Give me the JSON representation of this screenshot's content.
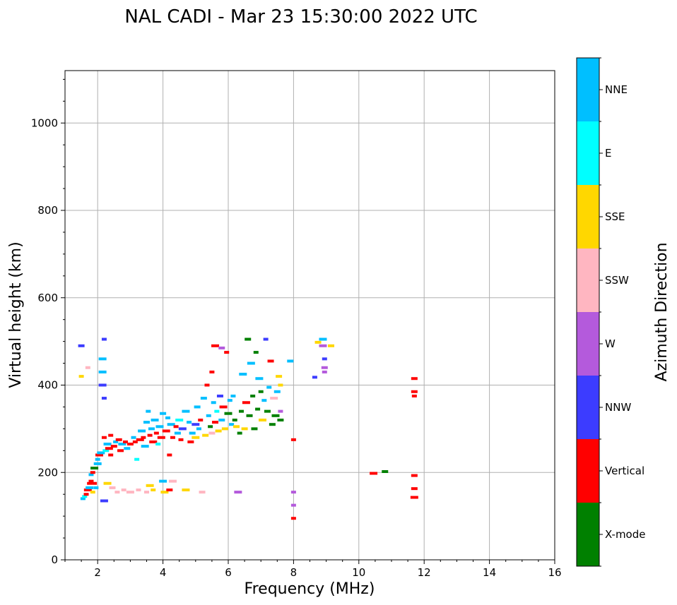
{
  "chart_data": {
    "type": "scatter",
    "title": "NAL CADI - Mar 23 15:30:00 2022 UTC",
    "xlabel": "Frequency (MHz)",
    "ylabel": "Virtual height (km)",
    "xlim": [
      1,
      16
    ],
    "ylim": [
      0,
      1120
    ],
    "xticks": [
      2,
      4,
      6,
      8,
      10,
      12,
      14,
      16
    ],
    "yticks": [
      0,
      200,
      400,
      600,
      800,
      1000
    ],
    "grid": true,
    "colorbar": {
      "title": "Azimuth Direction",
      "categories": [
        {
          "name": "X-mode",
          "color": "#008000"
        },
        {
          "name": "Vertical",
          "color": "#ff0000"
        },
        {
          "name": "NNW",
          "color": "#3c3cff"
        },
        {
          "name": "W",
          "color": "#b45adc"
        },
        {
          "name": "SSW",
          "color": "#ffb6c1"
        },
        {
          "name": "SSE",
          "color": "#ffd700"
        },
        {
          "name": "E",
          "color": "#00ffff"
        },
        {
          "name": "NNE",
          "color": "#00bfff"
        }
      ]
    },
    "points": [
      [
        1.5,
        490,
        "NNW"
      ],
      [
        1.5,
        420,
        "SSE"
      ],
      [
        1.55,
        140,
        "NNE"
      ],
      [
        1.6,
        145,
        "E"
      ],
      [
        1.65,
        150,
        "Vertical"
      ],
      [
        1.7,
        440,
        "SSW"
      ],
      [
        1.7,
        160,
        "Vertical"
      ],
      [
        1.75,
        175,
        "Vertical"
      ],
      [
        1.75,
        165,
        "NNE"
      ],
      [
        1.8,
        180,
        "Vertical"
      ],
      [
        1.8,
        195,
        "NNE"
      ],
      [
        1.85,
        155,
        "SSE"
      ],
      [
        1.85,
        200,
        "Vertical"
      ],
      [
        1.9,
        210,
        "X-mode"
      ],
      [
        1.9,
        175,
        "Vertical"
      ],
      [
        1.95,
        165,
        "NNE"
      ],
      [
        2.0,
        220,
        "NNE"
      ],
      [
        2.0,
        230,
        "NNE"
      ],
      [
        2.05,
        240,
        "Vertical"
      ],
      [
        2.1,
        245,
        "NNE"
      ],
      [
        2.15,
        460,
        "NNE"
      ],
      [
        2.15,
        430,
        "NNE"
      ],
      [
        2.15,
        400,
        "NNW"
      ],
      [
        2.2,
        505,
        "NNW"
      ],
      [
        2.2,
        370,
        "NNW"
      ],
      [
        2.2,
        280,
        "Vertical"
      ],
      [
        2.2,
        135,
        "NNW"
      ],
      [
        2.25,
        250,
        "E"
      ],
      [
        2.3,
        265,
        "NNE"
      ],
      [
        2.3,
        175,
        "SSE"
      ],
      [
        2.35,
        255,
        "Vertical"
      ],
      [
        2.4,
        285,
        "Vertical"
      ],
      [
        2.4,
        240,
        "Vertical"
      ],
      [
        2.45,
        165,
        "SSW"
      ],
      [
        2.5,
        260,
        "Vertical"
      ],
      [
        2.55,
        270,
        "NNE"
      ],
      [
        2.6,
        155,
        "SSW"
      ],
      [
        2.65,
        275,
        "Vertical"
      ],
      [
        2.7,
        250,
        "Vertical"
      ],
      [
        2.75,
        265,
        "NNE"
      ],
      [
        2.8,
        160,
        "SSW"
      ],
      [
        2.85,
        270,
        "Vertical"
      ],
      [
        2.9,
        255,
        "NNE"
      ],
      [
        3.0,
        265,
        "Vertical"
      ],
      [
        3.0,
        155,
        "SSW"
      ],
      [
        3.1,
        280,
        "NNE"
      ],
      [
        3.15,
        270,
        "Vertical"
      ],
      [
        3.2,
        230,
        "E"
      ],
      [
        3.25,
        160,
        "SSW"
      ],
      [
        3.3,
        275,
        "Vertical"
      ],
      [
        3.35,
        295,
        "NNE"
      ],
      [
        3.4,
        280,
        "Vertical"
      ],
      [
        3.45,
        260,
        "NNE"
      ],
      [
        3.5,
        315,
        "NNE"
      ],
      [
        3.5,
        155,
        "SSW"
      ],
      [
        3.55,
        340,
        "NNE"
      ],
      [
        3.6,
        285,
        "Vertical"
      ],
      [
        3.6,
        170,
        "SSE"
      ],
      [
        3.65,
        300,
        "NNE"
      ],
      [
        3.7,
        270,
        "Vertical"
      ],
      [
        3.7,
        160,
        "SSE"
      ],
      [
        3.75,
        320,
        "NNE"
      ],
      [
        3.8,
        290,
        "Vertical"
      ],
      [
        3.85,
        265,
        "E"
      ],
      [
        3.9,
        305,
        "NNE"
      ],
      [
        3.95,
        280,
        "Vertical"
      ],
      [
        4.0,
        335,
        "NNE"
      ],
      [
        4.0,
        180,
        "NNE"
      ],
      [
        4.05,
        155,
        "SSE"
      ],
      [
        4.1,
        295,
        "Vertical"
      ],
      [
        4.15,
        325,
        "NNE"
      ],
      [
        4.2,
        240,
        "Vertical"
      ],
      [
        4.2,
        160,
        "Vertical"
      ],
      [
        4.25,
        310,
        "NNE"
      ],
      [
        4.3,
        280,
        "Vertical"
      ],
      [
        4.3,
        180,
        "SSW"
      ],
      [
        4.4,
        305,
        "Vertical"
      ],
      [
        4.45,
        290,
        "NNE"
      ],
      [
        4.5,
        320,
        "E"
      ],
      [
        4.55,
        275,
        "Vertical"
      ],
      [
        4.6,
        300,
        "NNW"
      ],
      [
        4.7,
        340,
        "NNE"
      ],
      [
        4.7,
        160,
        "SSE"
      ],
      [
        4.8,
        315,
        "NNE"
      ],
      [
        4.85,
        270,
        "Vertical"
      ],
      [
        4.9,
        290,
        "NNE"
      ],
      [
        5.0,
        310,
        "NNW"
      ],
      [
        5.0,
        280,
        "SSE"
      ],
      [
        5.05,
        350,
        "NNE"
      ],
      [
        5.1,
        300,
        "NNE"
      ],
      [
        5.15,
        320,
        "Vertical"
      ],
      [
        5.2,
        155,
        "SSW"
      ],
      [
        5.25,
        370,
        "NNE"
      ],
      [
        5.3,
        285,
        "SSE"
      ],
      [
        5.35,
        400,
        "Vertical"
      ],
      [
        5.4,
        330,
        "NNE"
      ],
      [
        5.45,
        305,
        "X-mode"
      ],
      [
        5.5,
        430,
        "Vertical"
      ],
      [
        5.5,
        290,
        "SSW"
      ],
      [
        5.55,
        360,
        "NNE"
      ],
      [
        5.6,
        315,
        "Vertical"
      ],
      [
        5.6,
        490,
        "Vertical"
      ],
      [
        5.65,
        340,
        "E"
      ],
      [
        5.7,
        295,
        "SSE"
      ],
      [
        5.75,
        375,
        "NNW"
      ],
      [
        5.8,
        320,
        "NNE"
      ],
      [
        5.8,
        485,
        "W"
      ],
      [
        5.85,
        350,
        "Vertical"
      ],
      [
        5.9,
        300,
        "SSE"
      ],
      [
        5.95,
        475,
        "Vertical"
      ],
      [
        6.0,
        335,
        "X-mode"
      ],
      [
        6.05,
        365,
        "NNE"
      ],
      [
        6.1,
        310,
        "NNE"
      ],
      [
        6.15,
        375,
        "NNE"
      ],
      [
        6.2,
        320,
        "X-mode"
      ],
      [
        6.25,
        305,
        "SSE"
      ],
      [
        6.3,
        155,
        "W"
      ],
      [
        6.35,
        290,
        "X-mode"
      ],
      [
        6.4,
        340,
        "X-mode"
      ],
      [
        6.45,
        425,
        "NNE"
      ],
      [
        6.5,
        300,
        "SSE"
      ],
      [
        6.55,
        360,
        "Vertical"
      ],
      [
        6.6,
        505,
        "X-mode"
      ],
      [
        6.65,
        330,
        "X-mode"
      ],
      [
        6.7,
        450,
        "NNE"
      ],
      [
        6.75,
        375,
        "X-mode"
      ],
      [
        6.8,
        300,
        "X-mode"
      ],
      [
        6.85,
        475,
        "X-mode"
      ],
      [
        6.9,
        345,
        "X-mode"
      ],
      [
        6.95,
        415,
        "NNE"
      ],
      [
        7.0,
        385,
        "X-mode"
      ],
      [
        7.05,
        320,
        "SSE"
      ],
      [
        7.1,
        365,
        "NNE"
      ],
      [
        7.15,
        505,
        "NNW"
      ],
      [
        7.2,
        340,
        "X-mode"
      ],
      [
        7.25,
        395,
        "NNE"
      ],
      [
        7.3,
        455,
        "Vertical"
      ],
      [
        7.35,
        310,
        "X-mode"
      ],
      [
        7.4,
        370,
        "SSW"
      ],
      [
        7.45,
        330,
        "X-mode"
      ],
      [
        7.5,
        385,
        "NNE"
      ],
      [
        7.55,
        420,
        "SSE"
      ],
      [
        7.6,
        400,
        "SSE"
      ],
      [
        7.6,
        340,
        "W"
      ],
      [
        7.6,
        320,
        "X-mode"
      ],
      [
        7.9,
        455,
        "NNE"
      ],
      [
        8.0,
        275,
        "Vertical"
      ],
      [
        8.0,
        155,
        "W"
      ],
      [
        8.0,
        125,
        "W"
      ],
      [
        8.0,
        95,
        "Vertical"
      ],
      [
        8.65,
        418,
        "NNW"
      ],
      [
        8.75,
        498,
        "SSE"
      ],
      [
        8.9,
        505,
        "NNE"
      ],
      [
        8.9,
        490,
        "W"
      ],
      [
        8.95,
        460,
        "NNW"
      ],
      [
        8.95,
        440,
        "W"
      ],
      [
        8.95,
        430,
        "W"
      ],
      [
        9.15,
        490,
        "SSE"
      ],
      [
        10.45,
        198,
        "Vertical"
      ],
      [
        10.8,
        202,
        "X-mode"
      ],
      [
        11.7,
        415,
        "Vertical"
      ],
      [
        11.7,
        385,
        "Vertical"
      ],
      [
        11.7,
        375,
        "Vertical"
      ],
      [
        11.7,
        193,
        "Vertical"
      ],
      [
        11.7,
        163,
        "Vertical"
      ],
      [
        11.7,
        143,
        "Vertical"
      ]
    ]
  }
}
